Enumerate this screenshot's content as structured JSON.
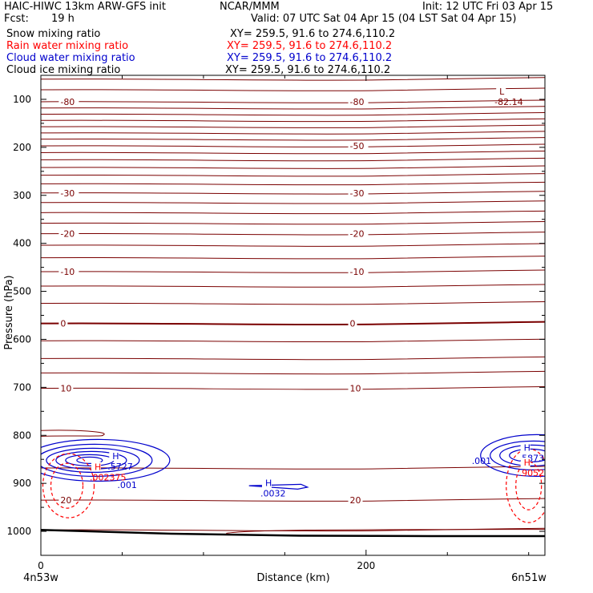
{
  "header": {
    "model": "HAIC-HIWC 13km ARW-GFS init",
    "center": "NCAR/MMM",
    "init": "Init: 12 UTC Fri 03 Apr 15",
    "fcst_label": "Fcst:",
    "fcst_value": "19 h",
    "valid": "Valid: 07 UTC Sat 04 Apr 15 (04 LST Sat 04 Apr 15)"
  },
  "legend": [
    {
      "name": "Snow mixing ratio",
      "xy": "XY= 259.5, 91.6 to 274.6,110.2",
      "color": "#000000"
    },
    {
      "name": "Rain water mixing ratio",
      "xy": "XY= 259.5, 91.6 to 274.6,110.2",
      "color": "#ff0000"
    },
    {
      "name": "Cloud water mixing ratio",
      "xy": "XY= 259.5, 91.6 to 274.6,110.2",
      "color": "#0000cc"
    },
    {
      "name": "Cloud ice mixing ratio",
      "xy": "XY= 259.5, 91.6 to 274.6,110.2",
      "color": "#000000"
    }
  ],
  "colors": {
    "temperature": "#7a0000",
    "rain": "#ff0000",
    "cloud_water": "#0000cc",
    "terrain": "#000000",
    "frame": "#000000"
  },
  "chart_data": {
    "type": "cross-section contour",
    "xlabel": "Distance (km)",
    "ylabel": "Pressure (hPa)",
    "xlim": [
      0,
      310
    ],
    "ylim": [
      1050,
      50
    ],
    "x_ticks": [
      0,
      200
    ],
    "x_minor_ticks": [
      50,
      100,
      150,
      250,
      300
    ],
    "y_ticks": [
      100,
      200,
      300,
      400,
      500,
      600,
      700,
      800,
      900,
      1000
    ],
    "y_minor_ticks": [
      150,
      250,
      350,
      450,
      550,
      650,
      750,
      850,
      950
    ],
    "endpoints": {
      "left": "4n53w",
      "right": "6n51w"
    },
    "temperature_isotherms": [
      {
        "p": 58
      },
      {
        "p": 80
      },
      {
        "p": 105,
        "label": "-80",
        "label_x": [
          12,
          190
        ]
      },
      {
        "p": 118
      },
      {
        "p": 131
      },
      {
        "p": 144
      },
      {
        "p": 157
      },
      {
        "p": 170
      },
      {
        "p": 183
      },
      {
        "p": 197,
        "label": "-50",
        "label_x": [
          190
        ]
      },
      {
        "p": 211
      },
      {
        "p": 226
      },
      {
        "p": 242
      },
      {
        "p": 258
      },
      {
        "p": 276
      },
      {
        "p": 295,
        "label": "-30",
        "label_x": [
          12,
          190
        ]
      },
      {
        "p": 315
      },
      {
        "p": 336
      },
      {
        "p": 358
      },
      {
        "p": 380,
        "label": "-20",
        "label_x": [
          12,
          190
        ]
      },
      {
        "p": 404
      },
      {
        "p": 430
      },
      {
        "p": 459,
        "label": "-10",
        "label_x": [
          12,
          190
        ]
      },
      {
        "p": 489
      },
      {
        "p": 525
      },
      {
        "p": 567,
        "label": "0",
        "label_x": [
          12,
          190
        ]
      },
      {
        "p": 603
      },
      {
        "p": 640
      },
      {
        "p": 670
      },
      {
        "p": 702,
        "label": "10",
        "label_x": [
          12,
          190
        ]
      },
      {
        "p": 868
      },
      {
        "p": 935,
        "label": "20",
        "label_x": [
          12,
          190
        ]
      },
      {
        "p": 997
      }
    ],
    "extrema": [
      {
        "type": "L",
        "value": "-82.14",
        "x": 282,
        "p": 90,
        "color": "temperature"
      },
      {
        "type": "H",
        "value": ".5727",
        "x": 44,
        "p": 850,
        "color": "cloud_water"
      },
      {
        "type": "H",
        "value": ".002375",
        "x": 33,
        "p": 872,
        "color": "rain"
      },
      {
        "type": "H",
        "value": ".0032",
        "x": 138,
        "p": 906,
        "color": "cloud_water"
      },
      {
        "type": "H",
        "value": ".5873",
        "x": 297,
        "p": 832,
        "color": "cloud_water"
      },
      {
        "type": "H",
        "value": ".9052",
        "x": 297,
        "p": 863,
        "color": "rain"
      }
    ],
    "contour_labels": [
      {
        "text": ".001",
        "x": 47,
        "p": 903,
        "color": "cloud_water"
      },
      {
        "text": ".001",
        "x": 265,
        "p": 853,
        "color": "cloud_water"
      }
    ]
  }
}
